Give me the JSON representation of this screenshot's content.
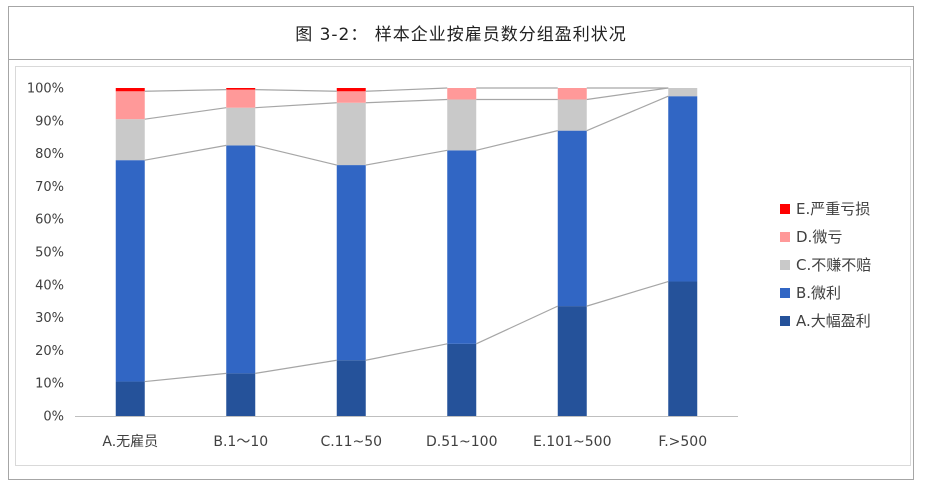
{
  "page": {
    "title": "图 3-2： 样本企业按雇员数分组盈利状况"
  },
  "chart_data": {
    "type": "bar",
    "stacked": true,
    "percent": true,
    "title": "图 3-2： 样本企业按雇员数分组盈利状况",
    "xlabel": "",
    "ylabel": "",
    "ylim": [
      0,
      100
    ],
    "yticks": [
      "0%",
      "10%",
      "20%",
      "30%",
      "40%",
      "50%",
      "60%",
      "70%",
      "80%",
      "90%",
      "100%"
    ],
    "grid": false,
    "legend_position": "right",
    "categories": [
      "A.无雇员",
      "B.1～10",
      "C.11~50",
      "D.51~100",
      "E.101~500",
      "F.>500"
    ],
    "series": [
      {
        "name": "A.大幅盈利",
        "color": "#25529a",
        "values": [
          10.5,
          13,
          17,
          22,
          33.5,
          41
        ]
      },
      {
        "name": "B.微利",
        "color": "#3166c4",
        "values": [
          67.5,
          69.5,
          59.5,
          59,
          53.5,
          56.5
        ]
      },
      {
        "name": "C.不赚不赔",
        "color": "#c9c9c9",
        "values": [
          12.5,
          11.5,
          19,
          15.5,
          9.5,
          2.5
        ]
      },
      {
        "name": "D.微亏",
        "color": "#ff9999",
        "values": [
          8.5,
          5.5,
          3.5,
          3.5,
          3.5,
          0
        ]
      },
      {
        "name": "E.严重亏损",
        "color": "#ff0000",
        "values": [
          1,
          0.5,
          1,
          0,
          0,
          0
        ]
      }
    ]
  }
}
